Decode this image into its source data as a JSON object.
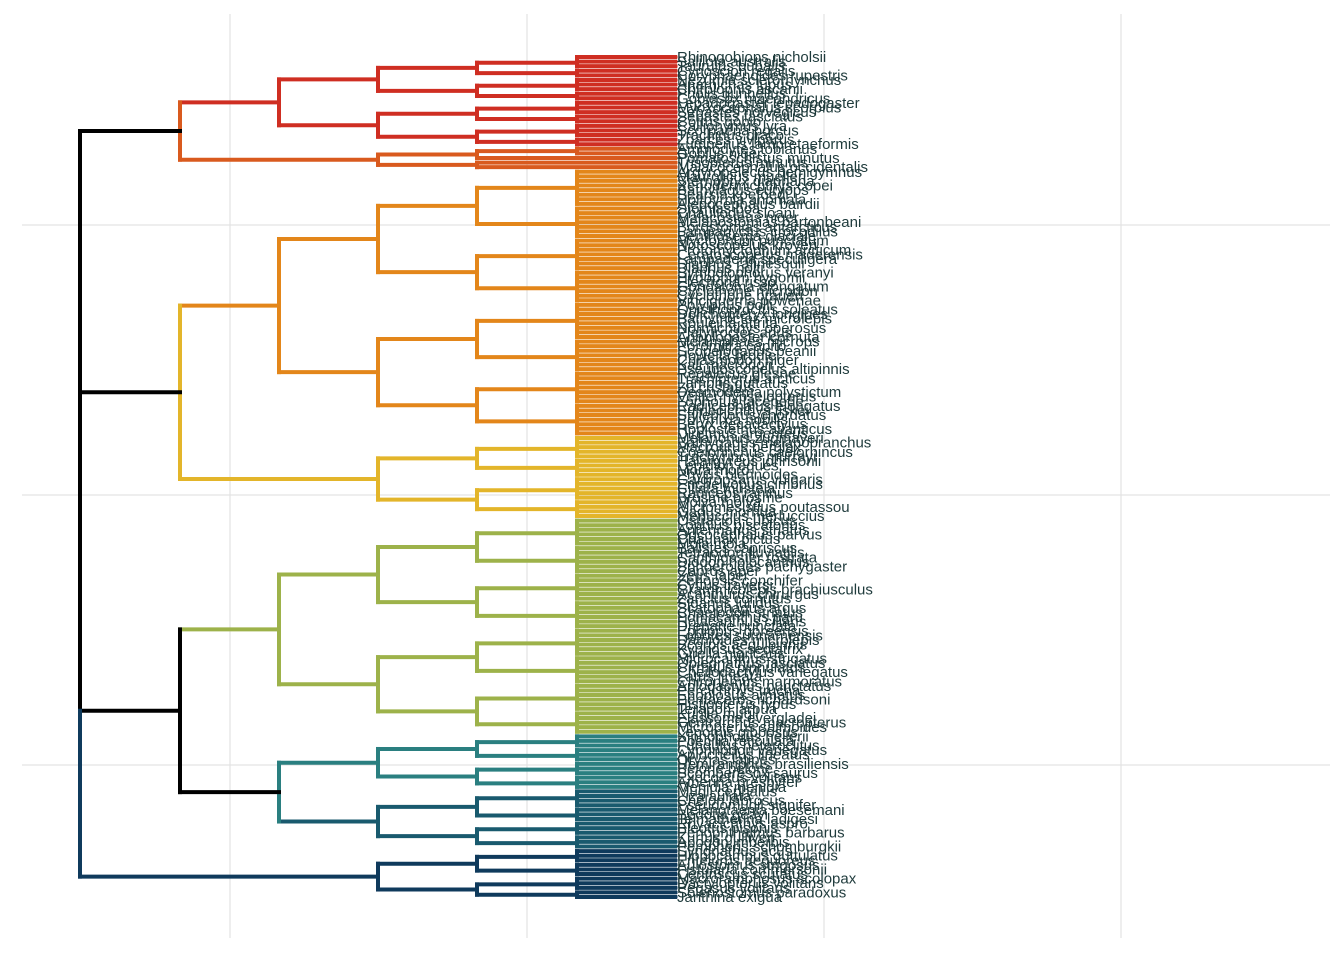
{
  "chart_data": {
    "type": "dendrogram",
    "orientation": "left-to-right",
    "grid": true,
    "clades": [
      {
        "name": "red",
        "color": "#cf2e22",
        "tips": [
          "Rhinogobiops nicholsii",
          "Salilota australis",
          "Taurulus bubalis",
          "Cynoscion regalis",
          "Coryphaenoides rupestris",
          "Nezumia sclerorhynchus",
          "Anarhichas lupus",
          "Chirolophis ascanii",
          "Pholis gunnellus",
          "Gobiesox maeandricus",
          "Lepadogaster lepadogaster",
          "Myoxocephalus scorpius",
          "Sebastes norvegicus",
          "Sebastes fasciatus",
          "Cottus gobio",
          "Callionymus lyra",
          "Scorpaena porcus",
          "Trachinus draco",
          "Zoarces viviparus",
          "Lumpenus lampretaeformis"
        ]
      },
      {
        "name": "orange-red",
        "color": "#d95a1e",
        "tips": [
          "Ammodytes tobianus",
          "Gobius niger",
          "Pomatoschistus minutus",
          "Trisopterus minutus",
          "Malacocephalus occidentalis"
        ]
      },
      {
        "name": "orange",
        "color": "#e3861a",
        "tips": [
          "Argyropelecus hemigymnus",
          "Maurolicus muelleri",
          "Sternoptyx diaphana",
          "Xenodermichthys copei",
          "Bathylagus euryops",
          "Searsia koefoedi",
          "Holtbyrnia anomala",
          "Alepocephalus bairdii",
          "Stomias boa",
          "Chauliodus sloani",
          "Malacosteus niger",
          "Melanostomias bartonbeani",
          "Borostomias antarcticus",
          "Lampanyctus crocodilus",
          "Benthosema glaciale",
          "Myctophum punctatum",
          "Notoscopelus kroyeri",
          "Protomyctophum arcticum",
          "Ceratoscopelus maderensis",
          "Lampadena speculigera",
          "Diaphus rafinesquii",
          "Diaphus holti",
          "Symbolophorus veranyi",
          "Hygophum hygomii",
          "Electrona risso",
          "Gonostoma elongatum",
          "Cyclothone microdon",
          "Cyclothone braueri",
          "Vinciguerria poweriae",
          "Polyipnus polli",
          "Opisthoproctus soleatus",
          "Dolichopteryx longipes",
          "Bathytroctes microlepis",
          "Rouleina attrita",
          "Normichthys operosus",
          "Platytroctes apus",
          "Anoplogaster cornuta",
          "Melamphaes microps",
          "Poromitra capito",
          "Scopelogadus beanii",
          "Howella brodiei",
          "Chiasmodon niger",
          "Kali macrodon",
          "Pseudoscopelus altipinnis",
          "Regalecus glesne",
          "Trachipterus arcticus",
          "Lampris guttatus",
          "Zu cristatus",
          "Desmodema polystictum",
          "Velifer hypselopterus",
          "Lophotus lacepede",
          "Radiicephalus elongatus",
          "Eumecichthys fiskei",
          "Stylephorus chordatus",
          "Polymixia nobilis",
          "Beryx decadactylus",
          "Hoplostethus atlanticus",
          "Diretmus argenteus"
        ]
      },
      {
        "name": "yellow",
        "color": "#e3b52a",
        "tips": [
          "Melanonus zugmayeri",
          "Bathygadus melanobranchus",
          "Macrourus berglax",
          "Coelorinchus caelorhincus",
          "Trachyrincus murrayi",
          "Halargyreus johnsonii",
          "Lepidion eques",
          "Mora moro",
          "Phycis blennoides",
          "Gaidropsarus vulgaris",
          "Enchelyopus cimbrius",
          "Ciliata mustela",
          "Raniceps raninus",
          "Brosme brosme",
          "Molva molva",
          "Micromesistius poutassou",
          "Gadus morhua",
          "Merluccius merluccius"
        ]
      },
      {
        "name": "olive",
        "color": "#9db24a",
        "tips": [
          "Ostracion cubicus",
          "Lophius piscatorius",
          "Antennarius striatus",
          "Ogcocephalus parvus",
          "Chaunax pictus",
          "Mola mola",
          "Balistes capriscus",
          "Tetraodon fluviatilis",
          "Canthigaster rostrata",
          "Diodon holocanthus",
          "Sphoeroides pachygaster",
          "Capros aper",
          "Zeus faber",
          "Zenopsis conchifer",
          "Cyttus traversi",
          "Grammicolepis brachiusculus",
          "Acanthurus chirurgus",
          "Zanclus cornutus",
          "Siganus luridus",
          "Scatophagus argus",
          "Chaetodon striatus",
          "Pomacanthus paru",
          "Holacanthus ciliaris",
          "Drepane punctata",
          "Ephippus goreensis",
          "Lobotes surinamensis",
          "Datnioides microlepis",
          "Scorpis aequipinnis",
          "Kyphosus sectatrix",
          "Girella nigricans",
          "Microcanthus strigatus",
          "Oplegnathus fasciatus",
          "Cirrhitus pinnulatus",
          "Cheilodactylus variegatus",
          "Latris lineata",
          "Chironemus marmoratus",
          "Aplodactylus punctatus",
          "Percichthys trucha",
          "Enoplosus armatus",
          "Pentaceros richardsoni",
          "Histiopterus typus",
          "Terapon jarbua",
          "Kuhlia mugil",
          "Elassoma evergladei",
          "Centrarchus macropterus",
          "Micropterus salmoides",
          "Lepomis gibbosus"
        ]
      },
      {
        "name": "teal",
        "color": "#2a7f80",
        "tips": [
          "Xiphophorus hellerii",
          "Poecilia reticulata",
          "Fundulus heteroclitus",
          "Cyprinodon variegatus",
          "Aplocheilus lineatus",
          "Oryzias latipes",
          "Hemiramphus brasiliensis",
          "Belone belone",
          "Scomberesox saurus",
          "Exocoetus volitans",
          "Atherina presbyter",
          "Menidia menidia"
        ]
      },
      {
        "name": "dark teal",
        "color": "#195a6e",
        "tips": [
          "Mugil cephalus",
          "Liza aurata",
          "Chelon labrosus",
          "Pseudomugil signifer",
          "Melanotaenia boesemani",
          "Bedotia geayi",
          "Telmatherina ladigesi",
          "Rhyacichthys aspro",
          "Eleotris pisonis",
          "Periophthalmus barbarus",
          "Kurtus gulliveri",
          "Apogon imberbis",
          "Pempheris schomburgkii"
        ]
      },
      {
        "name": "navy",
        "color": "#0f3a5c",
        "tips": [
          "Syngnathus acus",
          "Hippocampus guttulatus",
          "Entelurus aequoreus",
          "Aulostomus strigosus",
          "Fistularia commersonii",
          "Centriscus scutatus",
          "Macroramphosus scolopax",
          "Dactylopterus volitans",
          "Pegasus volitans",
          "Solenostomus paradoxus",
          "Janthina exigua"
        ]
      }
    ]
  }
}
